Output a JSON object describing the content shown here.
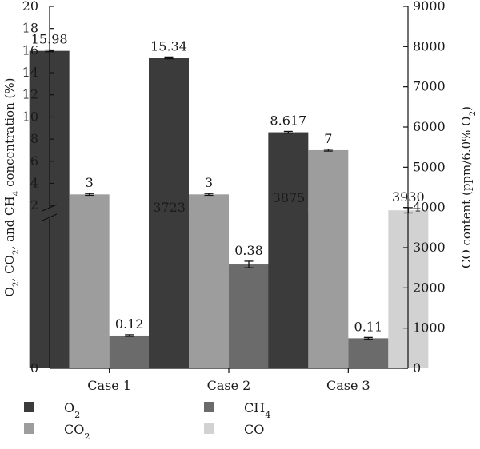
{
  "chart_data": {
    "type": "bar",
    "categories": [
      "Case 1",
      "Case 2",
      "Case 3"
    ],
    "left_axis": {
      "label_parts": [
        {
          "t": "O"
        },
        {
          "t": "2",
          "sub": true
        },
        {
          "t": ", CO"
        },
        {
          "t": "2",
          "sub": true
        },
        {
          "t": ", and CH"
        },
        {
          "t": "4",
          "sub": true
        },
        {
          "t": " concentration (%)"
        }
      ],
      "upper_ticks": [
        2,
        4,
        6,
        8,
        10,
        12,
        14,
        16,
        18,
        20
      ],
      "upper_range": [
        1.0,
        20
      ],
      "lower_range": [
        0,
        0.5
      ],
      "lower_ticks": [
        0
      ],
      "axis_break": true
    },
    "right_axis": {
      "label_parts": [
        {
          "t": "CO content (ppm/6.0% O"
        },
        {
          "t": "2",
          "sub": true
        },
        {
          "t": ")"
        }
      ],
      "range": [
        0,
        9000
      ],
      "ticks": [
        0,
        1000,
        2000,
        3000,
        4000,
        5000,
        6000,
        7000,
        8000,
        9000
      ]
    },
    "series": [
      {
        "key": "o2",
        "label_parts": [
          {
            "t": "O"
          },
          {
            "t": "2",
            "sub": true
          }
        ],
        "axis": "left",
        "color": "#3b3b3b",
        "values": [
          15.98,
          15.34,
          8.617
        ],
        "errors": [
          0.08,
          0.08,
          0.08
        ],
        "labels": [
          "15.98",
          "15.34",
          "8.617"
        ]
      },
      {
        "key": "co2",
        "label_parts": [
          {
            "t": "CO"
          },
          {
            "t": "2",
            "sub": true
          }
        ],
        "axis": "left",
        "color": "#9d9d9d",
        "values": [
          3,
          3,
          7
        ],
        "errors": [
          0.08,
          0.08,
          0.08
        ],
        "labels": [
          "3",
          "3",
          "7"
        ]
      },
      {
        "key": "ch4",
        "label_parts": [
          {
            "t": "CH"
          },
          {
            "t": "4",
            "sub": true
          }
        ],
        "axis": "left",
        "color": "#6b6b6b",
        "values": [
          0.12,
          0.38,
          0.11
        ],
        "errors": [
          0.003,
          0.012,
          0.003
        ],
        "labels": [
          "0.12",
          "0.38",
          "0.11"
        ]
      },
      {
        "key": "co",
        "label_parts": [
          {
            "t": "CO"
          }
        ],
        "axis": "right",
        "color": "#d2d2d2",
        "values": [
          3723,
          3875,
          3930
        ],
        "errors": [
          15,
          95,
          65
        ],
        "labels": [
          "3723",
          "3875",
          "3930"
        ]
      }
    ],
    "legend": {
      "placement": "bottom",
      "order": [
        "o2",
        "ch4",
        "co2",
        "co"
      ]
    },
    "grid": false
  }
}
